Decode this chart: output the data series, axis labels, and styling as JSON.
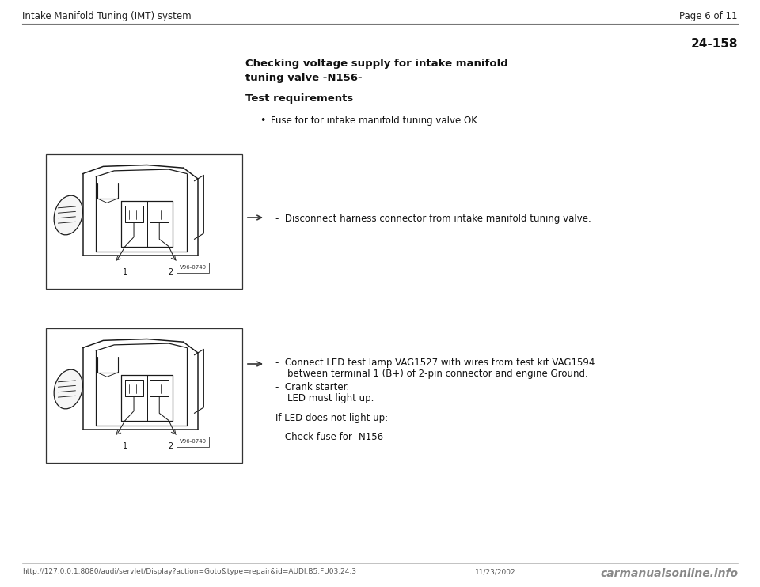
{
  "page_bg": "#ffffff",
  "header_left": "Intake Manifold Tuning (IMT) system",
  "header_right": "Page 6 of 11",
  "section_number": "24-158",
  "title_line1": "Checking voltage supply for intake manifold",
  "title_line2": "tuning valve -N156-",
  "subtitle": "Test requirements",
  "bullet_text": "Fuse for for intake manifold tuning valve OK",
  "arrow1_text": "-  Disconnect harness connector from intake manifold tuning valve.",
  "arrow2_text_line1": "-  Connect LED test lamp VAG1527 with wires from test kit VAG1594",
  "arrow2_text_line2": "    between terminal 1 (B+) of 2-pin connector and engine Ground.",
  "arrow2_text_line3": "-  Crank starter.",
  "arrow2_text_line4": "    LED must light up.",
  "if_led_text": "If LED does not light up:",
  "check_fuse_text": "-  Check fuse for -N156-",
  "footer_url": "http://127.0.0.1:8080/audi/servlet/Display?action=Goto&type=repair&id=AUDI.B5.FU03.24.3",
  "footer_date": "11/23/2002",
  "footer_brand": "carmanualsonline.info",
  "header_font_size": 8.5,
  "body_font_size": 8.5,
  "title_font_size": 9.5,
  "small_font_size": 7,
  "footer_font_size": 6.5,
  "brand_font_size": 10
}
